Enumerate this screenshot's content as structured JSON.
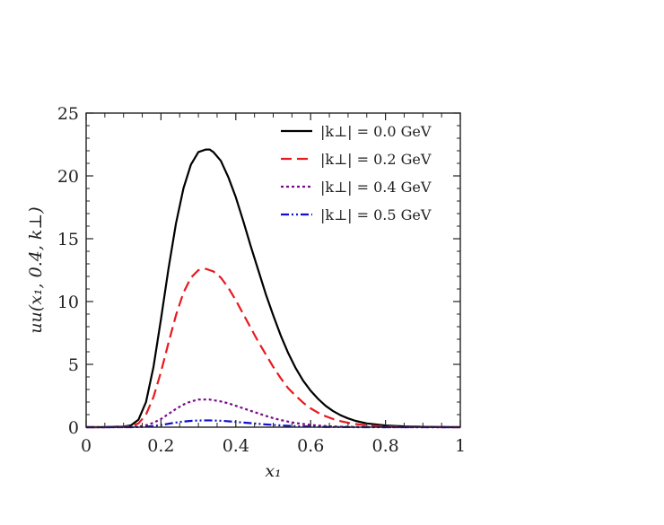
{
  "chart_data": {
    "type": "line",
    "xlabel": "x₁",
    "ylabel": "uu(x₁, 0.4, k⊥)",
    "xlim": [
      0,
      1
    ],
    "ylim": [
      0,
      25
    ],
    "xticks": [
      0,
      0.2,
      0.4,
      0.6,
      0.8,
      1
    ],
    "yticks": [
      0,
      5,
      10,
      15,
      20,
      25
    ],
    "xtick_labels": [
      "0",
      "0.2",
      "0.4",
      "0.6",
      "0.8",
      "1"
    ],
    "ytick_labels": [
      "0",
      "5",
      "10",
      "15",
      "20",
      "25"
    ],
    "grid": false,
    "legend_position": "top-right",
    "x": [
      0.0,
      0.05,
      0.1,
      0.12,
      0.14,
      0.16,
      0.18,
      0.2,
      0.22,
      0.24,
      0.26,
      0.28,
      0.3,
      0.32,
      0.33,
      0.34,
      0.36,
      0.38,
      0.4,
      0.42,
      0.44,
      0.46,
      0.48,
      0.5,
      0.52,
      0.54,
      0.56,
      0.58,
      0.6,
      0.62,
      0.64,
      0.66,
      0.68,
      0.7,
      0.72,
      0.75,
      0.8,
      0.85,
      0.9,
      0.95,
      1.0
    ],
    "series": [
      {
        "name": "|k⊥| = 0.0 GeV",
        "color": "#000000",
        "dash": "solid",
        "values": [
          0,
          0,
          0.05,
          0.15,
          0.6,
          2.0,
          4.8,
          8.6,
          12.6,
          16.2,
          19.0,
          20.9,
          21.9,
          22.1,
          22.1,
          21.9,
          21.2,
          19.9,
          18.3,
          16.4,
          14.4,
          12.5,
          10.6,
          8.9,
          7.3,
          5.9,
          4.7,
          3.7,
          2.9,
          2.25,
          1.7,
          1.28,
          0.95,
          0.7,
          0.5,
          0.3,
          0.14,
          0.06,
          0.03,
          0.01,
          0
        ]
      },
      {
        "name": "|k⊥| = 0.2 GeV",
        "color": "#e8191f",
        "dash": "dashed",
        "values": [
          0,
          0,
          0.03,
          0.08,
          0.3,
          1.0,
          2.4,
          4.4,
          6.7,
          8.9,
          10.7,
          11.9,
          12.5,
          12.6,
          12.5,
          12.4,
          11.9,
          11.1,
          10.1,
          9.0,
          7.9,
          6.8,
          5.8,
          4.8,
          3.9,
          3.1,
          2.5,
          1.95,
          1.5,
          1.15,
          0.87,
          0.65,
          0.48,
          0.35,
          0.25,
          0.15,
          0.06,
          0.03,
          0.01,
          0,
          0
        ]
      },
      {
        "name": "|k⊥| = 0.4 GeV",
        "color": "#7a0a8a",
        "dash": "dotted",
        "values": [
          0,
          0,
          0,
          0.02,
          0.05,
          0.15,
          0.35,
          0.65,
          1.05,
          1.45,
          1.8,
          2.05,
          2.2,
          2.2,
          2.2,
          2.15,
          2.05,
          1.9,
          1.7,
          1.5,
          1.3,
          1.1,
          0.9,
          0.72,
          0.57,
          0.44,
          0.33,
          0.25,
          0.18,
          0.13,
          0.09,
          0.06,
          0.04,
          0.03,
          0.02,
          0.01,
          0,
          0,
          0,
          0,
          0
        ]
      },
      {
        "name": "|k⊥| = 0.5 GeV",
        "color": "#1010cc",
        "dash": "dashdotdot",
        "values": [
          0,
          0,
          0,
          0,
          0.01,
          0.04,
          0.09,
          0.17,
          0.27,
          0.37,
          0.45,
          0.5,
          0.53,
          0.54,
          0.54,
          0.53,
          0.51,
          0.47,
          0.42,
          0.37,
          0.32,
          0.27,
          0.22,
          0.18,
          0.14,
          0.11,
          0.08,
          0.06,
          0.045,
          0.03,
          0.02,
          0.015,
          0.01,
          0.005,
          0,
          0,
          0,
          0,
          0,
          0,
          0
        ]
      }
    ]
  }
}
